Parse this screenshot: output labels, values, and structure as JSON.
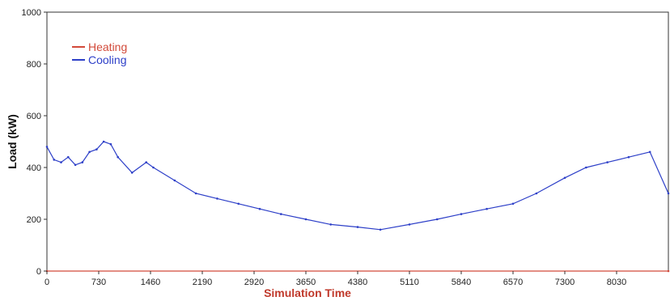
{
  "chart_data": {
    "type": "line",
    "title": "",
    "xlabel": "Simulation Time",
    "ylabel": "Load (kW)",
    "xlim": [
      0,
      8760
    ],
    "ylim": [
      0,
      1000
    ],
    "x_ticks": [
      0,
      730,
      1460,
      2190,
      2920,
      3650,
      4380,
      5110,
      5840,
      6570,
      7300,
      8030
    ],
    "x_tick_labels": [
      "0",
      "730",
      "1460",
      "2190",
      "2920",
      "3650",
      "4380",
      "5110",
      "5840",
      "6570",
      "7300",
      "8030"
    ],
    "y_ticks": [
      0,
      200,
      400,
      600,
      800,
      1000
    ],
    "y_tick_labels": [
      "0",
      "200",
      "400",
      "600",
      "800",
      "1000"
    ],
    "grid": false,
    "legend_position": "top-left",
    "series": [
      {
        "name": "Heating",
        "color": "#d24a3a",
        "x": [
          0,
          8760
        ],
        "y": [
          0,
          0
        ]
      },
      {
        "name": "Cooling",
        "color": "#2d3fc8",
        "x": [
          0,
          100,
          200,
          300,
          400,
          500,
          600,
          700,
          800,
          900,
          1000,
          1200,
          1400,
          1500,
          1800,
          2100,
          2400,
          2700,
          3000,
          3300,
          3650,
          4000,
          4380,
          4700,
          5110,
          5500,
          5840,
          6200,
          6570,
          6900,
          7300,
          7600,
          7900,
          8200,
          8500,
          8760
        ],
        "y": [
          480,
          430,
          420,
          440,
          410,
          420,
          460,
          470,
          500,
          490,
          440,
          380,
          420,
          400,
          350,
          300,
          280,
          260,
          240,
          220,
          200,
          180,
          170,
          160,
          180,
          200,
          220,
          240,
          260,
          300,
          360,
          400,
          420,
          440,
          460,
          300
        ]
      }
    ]
  }
}
